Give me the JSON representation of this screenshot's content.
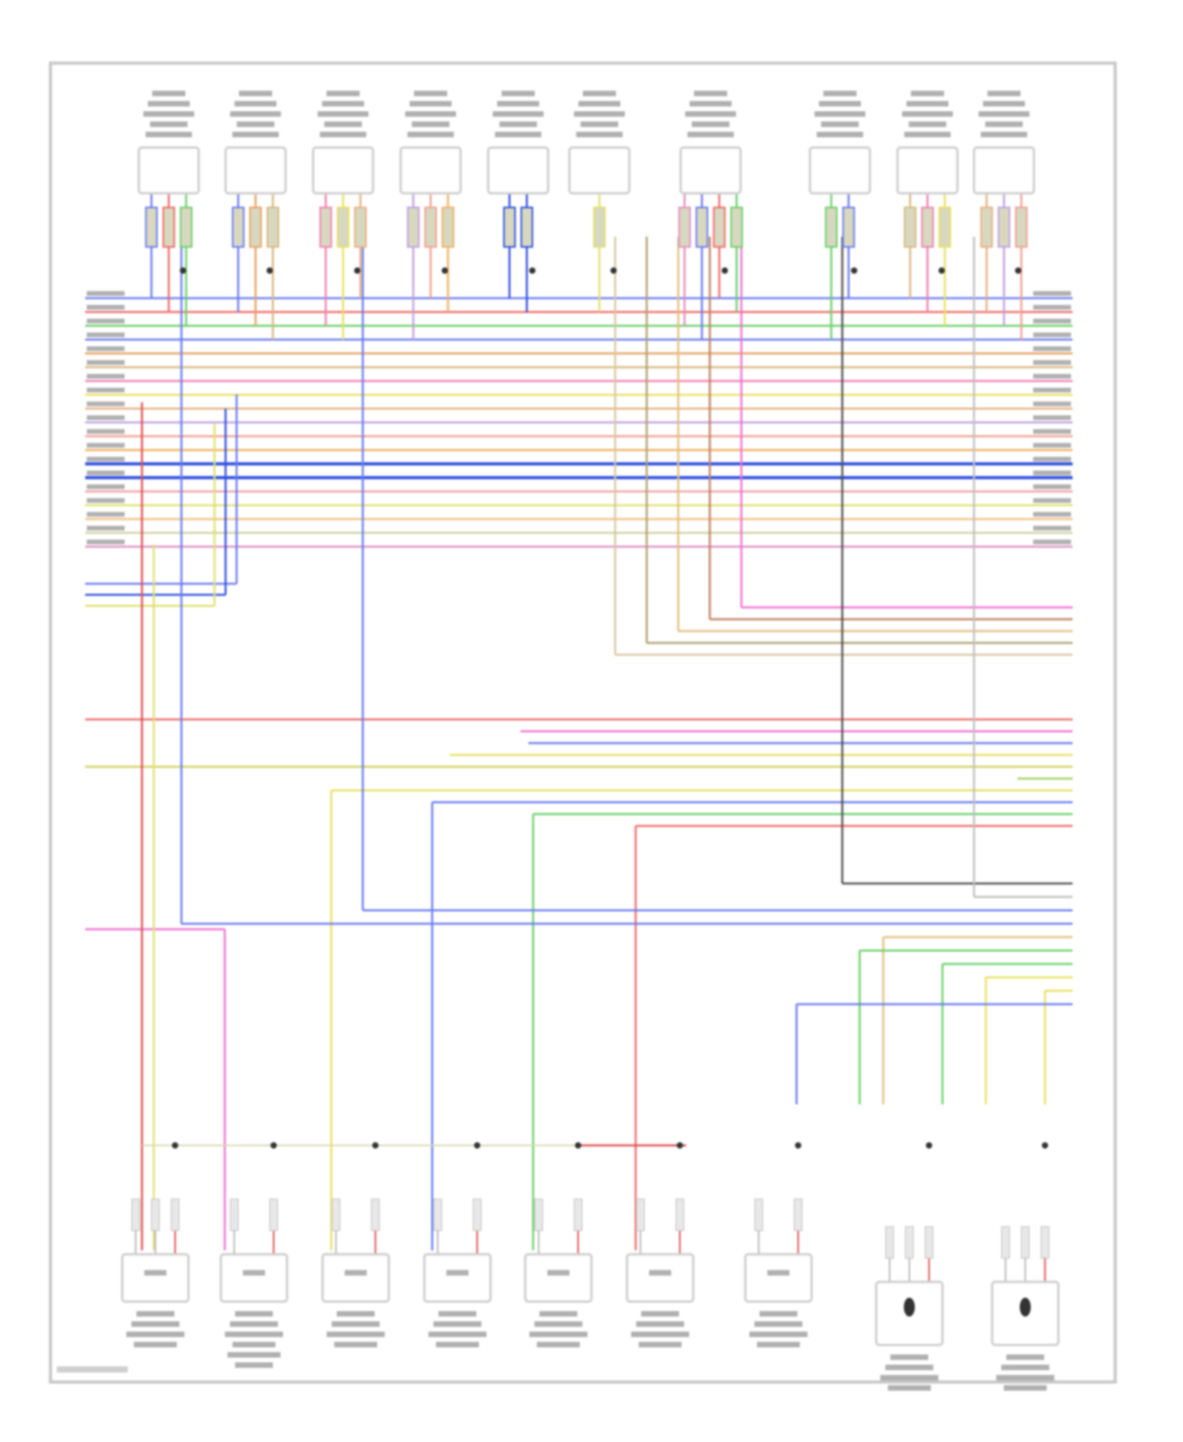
{
  "diagram": {
    "frame_color": "#c8c8c8",
    "label_color": "#b0b0b0",
    "top_components": [
      {
        "pins": 3
      },
      {
        "pins": 3
      },
      {
        "pins": 3
      },
      {
        "pins": 3
      },
      {
        "pins": 2
      },
      {
        "pins": 1
      },
      {
        "pins": 4
      },
      {
        "pins": 2
      },
      {
        "pins": 3
      },
      {
        "pins": 3
      }
    ],
    "bottom_components": [
      {
        "pins": 3
      },
      {
        "pins": 2
      },
      {
        "pins": 2
      },
      {
        "pins": 2
      },
      {
        "pins": 2
      },
      {
        "pins": 2
      },
      {
        "pins": 2
      },
      {
        "pins": 3,
        "sensor": true
      },
      {
        "pins": 3,
        "sensor": true
      }
    ],
    "bus_wires": [
      "#6a7cf0",
      "#f06a6a",
      "#6ad06a",
      "#6a7cf0",
      "#e8a060",
      "#d8b880",
      "#f080b0",
      "#e8e060",
      "#e8b080",
      "#c0a0e0",
      "#f0a090",
      "#f0b060",
      "#3050e0",
      "#3050e0",
      "#f0a0a0",
      "#e0e070",
      "#f0c080",
      "#d0d0a0",
      "#e090c0"
    ],
    "aux_wires": [
      "#6a7cf0",
      "#3050e0",
      "#e0e070"
    ],
    "right_group_a": [
      "#f070d0",
      "#c08060",
      "#e0c080",
      "#b0a070",
      "#d8c8a0"
    ],
    "right_group_b": [
      "#f06a6a",
      "#f070d0",
      "#6a7cf0",
      "#e8e060",
      "#d0d060",
      "#a0d060",
      "#e8e060",
      "#6a7cf0",
      "#6ad06a",
      "#f06a6a"
    ],
    "right_group_c": [
      "#505050",
      "#c0c0c0",
      "#6a7cf0",
      "#6a7cf0",
      "#e0c080",
      "#6ad06a",
      "#6ad06a",
      "#e8e060",
      "#e8e060",
      "#6a7cf0"
    ],
    "accent_red": "#e05050"
  }
}
